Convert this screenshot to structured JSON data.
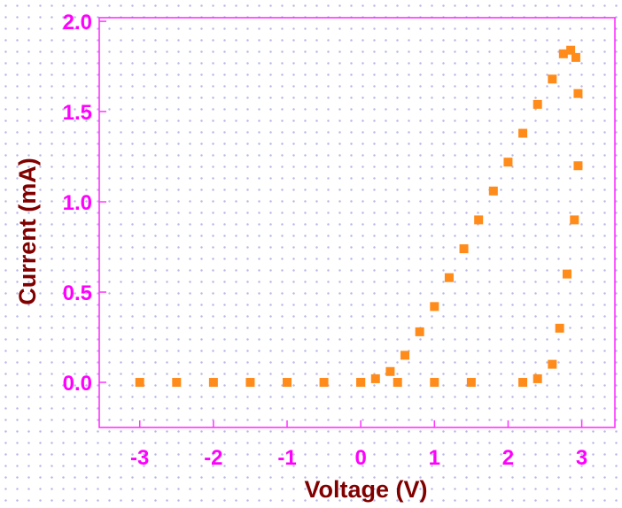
{
  "chart_data": {
    "type": "scatter",
    "title": "",
    "xlabel": "Voltage (V)",
    "ylabel": "Current (mA)",
    "xlim": [
      -3.55,
      3.45
    ],
    "ylim": [
      -0.25,
      2.02
    ],
    "xticks": [
      -3,
      -2,
      -1,
      0,
      1,
      2,
      3
    ],
    "xtick_labels": [
      "-3",
      "-2",
      "-1",
      "0",
      "1",
      "2",
      "3"
    ],
    "yticks": [
      0.0,
      0.5,
      1.0,
      1.5,
      2.0
    ],
    "ytick_labels": [
      "0.0",
      "0.5",
      "1.0",
      "1.5",
      "2.0"
    ],
    "grid": false,
    "legend": "none",
    "colors": {
      "series": "#ff8c1a",
      "axes_frame": "#ff33ff",
      "tick_labels": "#ff00ff",
      "axis_labels": "#800000"
    },
    "series": [
      {
        "values": [
          [
            -3.0,
            0.0
          ],
          [
            -2.5,
            0.0
          ],
          [
            -2.0,
            0.0
          ],
          [
            -1.5,
            0.0
          ],
          [
            -1.0,
            0.0
          ],
          [
            -0.5,
            0.0
          ],
          [
            0.0,
            0.0
          ],
          [
            0.2,
            0.02
          ],
          [
            0.4,
            0.06
          ],
          [
            0.6,
            0.15
          ],
          [
            0.8,
            0.28
          ],
          [
            1.0,
            0.42
          ],
          [
            1.2,
            0.58
          ],
          [
            1.4,
            0.74
          ],
          [
            1.6,
            0.9
          ],
          [
            1.8,
            1.06
          ],
          [
            2.0,
            1.22
          ],
          [
            2.2,
            1.38
          ],
          [
            2.4,
            1.54
          ],
          [
            2.6,
            1.68
          ],
          [
            2.75,
            1.82
          ],
          [
            2.85,
            1.84
          ],
          [
            2.92,
            1.8
          ],
          [
            2.95,
            1.6
          ],
          [
            2.95,
            1.2
          ],
          [
            2.9,
            0.9
          ],
          [
            2.8,
            0.6
          ],
          [
            2.7,
            0.3
          ],
          [
            2.6,
            0.1
          ],
          [
            2.4,
            0.02
          ],
          [
            2.2,
            0.0
          ],
          [
            1.5,
            0.0
          ],
          [
            1.0,
            0.0
          ],
          [
            0.5,
            0.0
          ],
          [
            0.0,
            0.0
          ]
        ]
      }
    ]
  }
}
